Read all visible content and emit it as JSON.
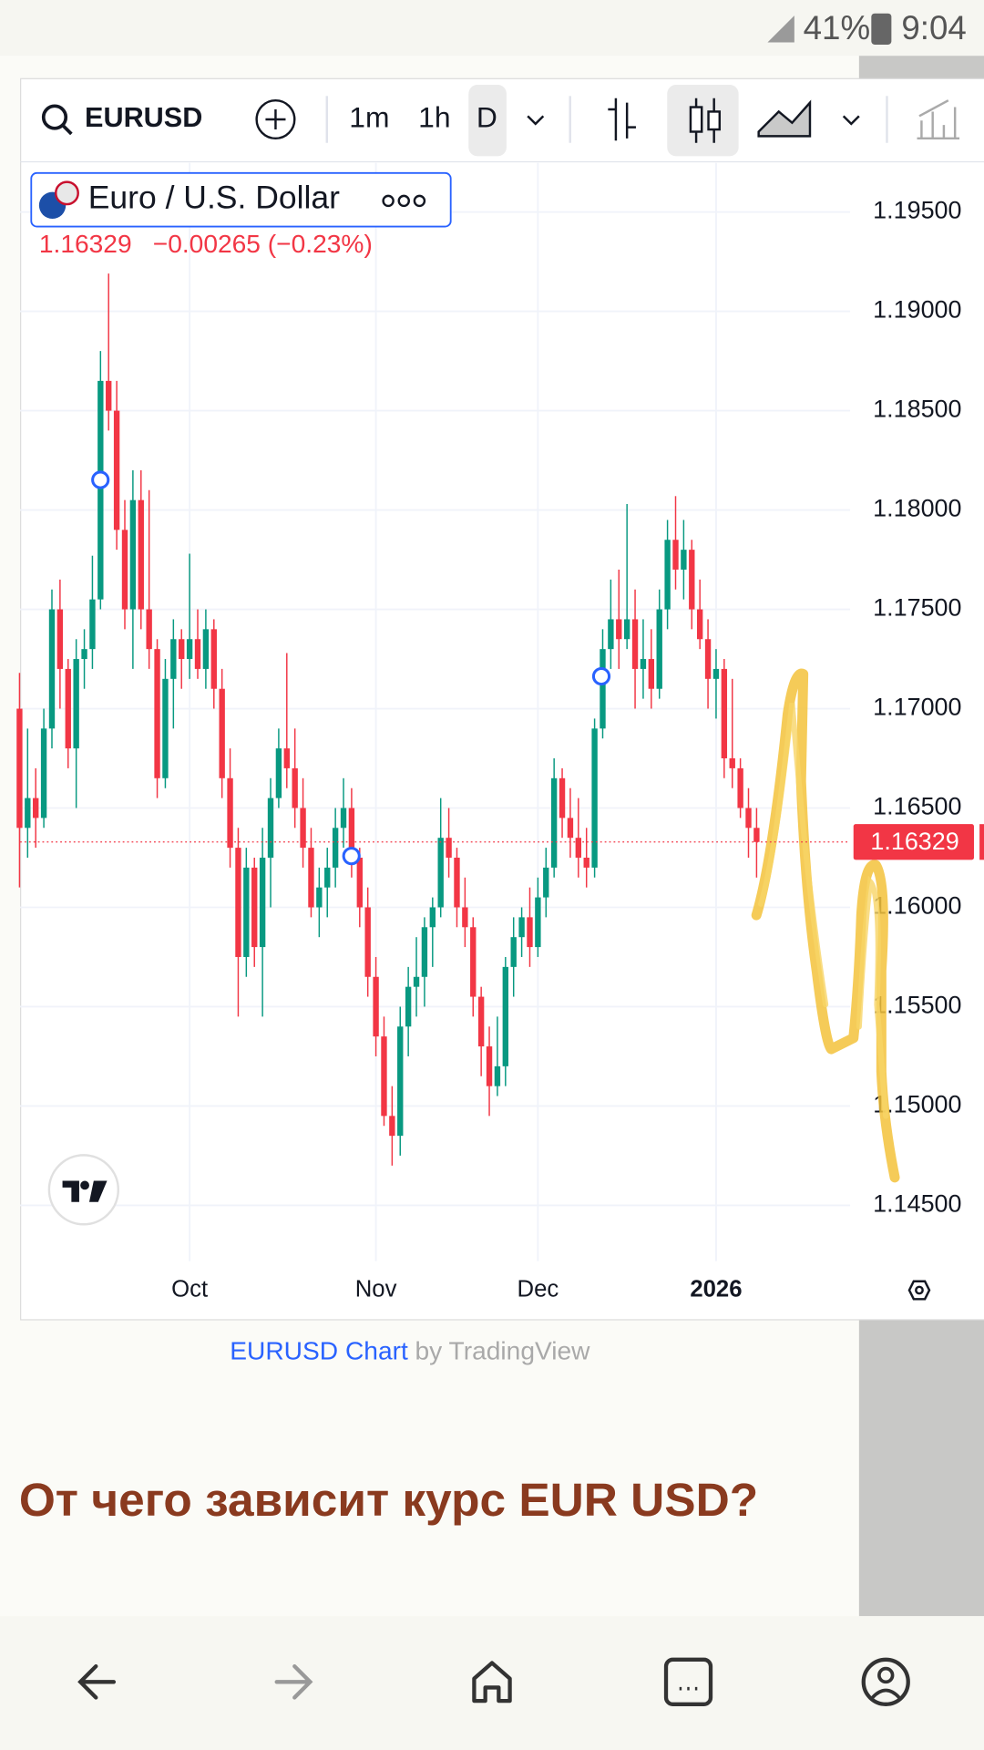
{
  "status_bar": {
    "battery": "41%",
    "time": "9:04"
  },
  "toolbar": {
    "symbol": "EURUSD",
    "intervals": [
      "1m",
      "1h",
      "D"
    ]
  },
  "chart_data": {
    "type": "candlestick",
    "title": "Euro / U.S. Dollar",
    "last_price": 1.16329,
    "change": "−0.00265 (−0.23%)",
    "up_color": "#089981",
    "down_color": "#f23645",
    "grid": true,
    "ylim": [
      1.14219,
      1.19747
    ],
    "yticks": [
      {
        "value": 1.145,
        "label": "1.14500"
      },
      {
        "value": 1.15,
        "label": "1.15000"
      },
      {
        "value": 1.155,
        "label": "1.15500"
      },
      {
        "value": 1.16,
        "label": "1.16000"
      },
      {
        "value": 1.165,
        "label": "1.16500"
      },
      {
        "value": 1.17,
        "label": "1.17000"
      },
      {
        "value": 1.175,
        "label": "1.17500"
      },
      {
        "value": 1.18,
        "label": "1.18000"
      },
      {
        "value": 1.185,
        "label": "1.18500"
      },
      {
        "value": 1.19,
        "label": "1.19000"
      },
      {
        "value": 1.195,
        "label": "1.19500"
      }
    ],
    "categories": [
      null,
      null,
      null,
      null,
      null,
      null,
      null,
      null,
      null,
      null,
      null,
      null,
      null,
      null,
      null,
      null,
      null,
      null,
      null,
      null,
      null,
      "Oct",
      null,
      null,
      null,
      null,
      null,
      null,
      null,
      null,
      null,
      null,
      null,
      null,
      null,
      null,
      null,
      null,
      null,
      null,
      null,
      null,
      null,
      null,
      "Nov",
      null,
      null,
      null,
      null,
      null,
      null,
      null,
      null,
      null,
      null,
      null,
      null,
      null,
      null,
      null,
      null,
      null,
      null,
      null,
      "Dec",
      null,
      null,
      null,
      null,
      null,
      null,
      null,
      null,
      null,
      null,
      null,
      null,
      null,
      null,
      null,
      null,
      null,
      null,
      null,
      null,
      null,
      "2026",
      null,
      null,
      null,
      null,
      null
    ],
    "open": [
      1.17,
      1.164,
      1.1655,
      1.1645,
      1.169,
      1.175,
      1.172,
      1.168,
      1.1725,
      1.173,
      1.1755,
      1.1865,
      1.185,
      1.179,
      1.175,
      1.1805,
      1.175,
      1.173,
      1.1665,
      1.1715,
      1.1735,
      1.1725,
      1.1735,
      1.172,
      1.174,
      1.171,
      1.1665,
      1.163,
      1.1575,
      1.162,
      1.158,
      1.1625,
      1.1655,
      1.168,
      1.167,
      1.165,
      1.163,
      1.16,
      1.161,
      1.162,
      1.164,
      1.165,
      1.1625,
      1.16,
      1.1565,
      1.1535,
      1.1495,
      1.1485,
      1.154,
      1.156,
      1.1565,
      1.159,
      1.16,
      1.1635,
      1.1625,
      1.16,
      1.159,
      1.1555,
      1.153,
      1.151,
      1.152,
      1.157,
      1.1585,
      1.1595,
      1.158,
      1.1605,
      1.162,
      1.1665,
      1.1645,
      1.1635,
      1.1625,
      1.162,
      1.169,
      1.173,
      1.1745,
      1.1735,
      1.1745,
      1.172,
      1.1725,
      1.171,
      1.175,
      1.1785,
      1.177,
      1.178,
      1.175,
      1.1735,
      1.1715,
      1.172,
      1.1675,
      1.167,
      1.165,
      1.164
    ],
    "high": [
      1.1718,
      1.169,
      1.167,
      1.17,
      1.176,
      1.1765,
      1.1725,
      1.1735,
      1.174,
      1.1777,
      1.188,
      1.1919,
      1.1865,
      1.1805,
      1.182,
      1.182,
      1.181,
      1.1735,
      1.1725,
      1.1745,
      1.174,
      1.1778,
      1.175,
      1.175,
      1.1745,
      1.172,
      1.168,
      1.164,
      1.163,
      1.1625,
      1.164,
      1.1665,
      1.169,
      1.1728,
      1.169,
      1.1665,
      1.164,
      1.162,
      1.163,
      1.165,
      1.1665,
      1.166,
      1.163,
      1.161,
      1.1575,
      1.1545,
      1.151,
      1.155,
      1.157,
      1.1585,
      1.1595,
      1.1605,
      1.1655,
      1.165,
      1.163,
      1.1615,
      1.1595,
      1.156,
      1.154,
      1.1545,
      1.1575,
      1.1595,
      1.16,
      1.161,
      1.1615,
      1.163,
      1.1675,
      1.167,
      1.166,
      1.1655,
      1.164,
      1.1695,
      1.174,
      1.1765,
      1.177,
      1.1803,
      1.176,
      1.1745,
      1.174,
      1.176,
      1.1795,
      1.1807,
      1.1795,
      1.1785,
      1.1765,
      1.1745,
      1.173,
      1.1725,
      1.1715,
      1.1675,
      1.166,
      1.165
    ],
    "low": [
      1.161,
      1.1625,
      1.163,
      1.164,
      1.168,
      1.17,
      1.167,
      1.165,
      1.171,
      1.172,
      1.175,
      1.184,
      1.178,
      1.174,
      1.172,
      1.174,
      1.172,
      1.1655,
      1.166,
      1.169,
      1.171,
      1.1715,
      1.1715,
      1.171,
      1.17,
      1.1655,
      1.162,
      1.1545,
      1.1565,
      1.157,
      1.1545,
      1.16,
      1.165,
      1.166,
      1.164,
      1.162,
      1.1595,
      1.1585,
      1.1595,
      1.161,
      1.163,
      1.1615,
      1.159,
      1.1555,
      1.1525,
      1.149,
      1.147,
      1.1475,
      1.1525,
      1.1545,
      1.155,
      1.157,
      1.1595,
      1.1615,
      1.159,
      1.158,
      1.1545,
      1.1515,
      1.1495,
      1.1505,
      1.151,
      1.1555,
      1.1575,
      1.157,
      1.1575,
      1.1595,
      1.1615,
      1.1635,
      1.1625,
      1.1615,
      1.161,
      1.1615,
      1.1685,
      1.172,
      1.172,
      1.173,
      1.17,
      1.1705,
      1.17,
      1.1705,
      1.174,
      1.176,
      1.1755,
      1.174,
      1.173,
      1.17,
      1.1695,
      1.1665,
      1.166,
      1.1645,
      1.1625,
      1.1615
    ],
    "close": [
      1.164,
      1.1655,
      1.1645,
      1.169,
      1.175,
      1.172,
      1.168,
      1.1725,
      1.173,
      1.1755,
      1.1865,
      1.185,
      1.179,
      1.175,
      1.1805,
      1.175,
      1.173,
      1.1665,
      1.1715,
      1.1735,
      1.1725,
      1.1735,
      1.172,
      1.174,
      1.171,
      1.1665,
      1.163,
      1.1575,
      1.162,
      1.158,
      1.1625,
      1.1655,
      1.168,
      1.167,
      1.165,
      1.163,
      1.16,
      1.161,
      1.162,
      1.164,
      1.165,
      1.1625,
      1.16,
      1.1565,
      1.1535,
      1.1495,
      1.1485,
      1.154,
      1.156,
      1.1565,
      1.159,
      1.16,
      1.1635,
      1.1625,
      1.16,
      1.159,
      1.1555,
      1.153,
      1.151,
      1.152,
      1.157,
      1.1585,
      1.1595,
      1.158,
      1.1605,
      1.162,
      1.1665,
      1.1645,
      1.1635,
      1.1625,
      1.162,
      1.169,
      1.173,
      1.1745,
      1.1735,
      1.1745,
      1.172,
      1.1725,
      1.171,
      1.175,
      1.1785,
      1.177,
      1.178,
      1.175,
      1.1735,
      1.1715,
      1.172,
      1.1675,
      1.167,
      1.165,
      1.164,
      1.16329
    ]
  },
  "caption": {
    "link": "EURUSD Chart",
    "by": "by TradingView"
  },
  "article": {
    "heading": "От чего зависит курс EUR USD?"
  }
}
